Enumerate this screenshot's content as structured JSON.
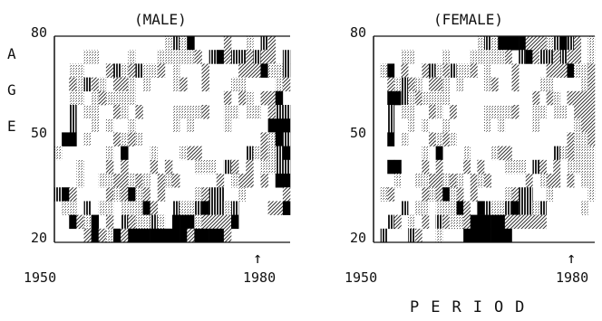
{
  "figure": {
    "y_axis_label_letters": [
      "A",
      "G",
      "E"
    ],
    "x_axis_label": "PERIOD",
    "arrow_glyph": "↑",
    "arrow_year": 1980
  },
  "chart_data": [
    {
      "type": "heatmap",
      "title": "(MALE)",
      "xlabel": "PERIOD",
      "ylabel": "AGE",
      "xlim": [
        1950,
        1983
      ],
      "ylim": [
        20,
        80
      ],
      "x_tick_labels": [
        "1950",
        "1980"
      ],
      "y_tick_labels": [
        "80",
        "50",
        "20"
      ],
      "annotations": [
        {
          "text": "↑",
          "x": 1980
        }
      ],
      "shading_levels": 5,
      "cells_resolution": {
        "period_years": 1,
        "age_years": 4
      },
      "level_colors": [
        "#ffffff",
        "#c8c8c8",
        "#8c8c8c",
        "#4a4a4a",
        "#000000"
      ],
      "rows": [
        "00000000000000013140000200103200",
        "00001100001000111112034233232203",
        "00110002312311201000200002224113",
        "00213210221010001200200011000012",
        "00110121111000000000000202102240",
        "00301100210200001111200110110233",
        "00300101001000001010000100000444",
        "04401000212100000000000000002143",
        "10000001040001000122000000312134",
        "00010002020002020001110320201133",
        "00010011221210212000002012202044",
        "34200002124120200001233001000002",
        "01103011011142003113433130000224",
        "00421402032113104441222240000000",
        "00002421424444444424444200000000"
      ]
    },
    {
      "type": "heatmap",
      "title": "(FEMALE)",
      "xlabel": "PERIOD",
      "ylabel": "AGE",
      "xlim": [
        1950,
        1983
      ],
      "ylim": [
        20,
        80
      ],
      "x_tick_labels": [
        "1950",
        "1980"
      ],
      "y_tick_labels": [
        "80",
        "50",
        "20"
      ],
      "annotations": [
        {
          "text": "↑",
          "x": 1980
        }
      ],
      "shading_levels": 5,
      "cells_resolution": {
        "period_years": 1,
        "age_years": 4
      },
      "level_colors": [
        "#ffffff",
        "#c8c8c8",
        "#8c8c8c",
        "#4a4a4a",
        "#000000"
      ],
      "rows": [
        "00000000000000013144442221343201",
        "00001100001000111112034233232201",
        "01402002312311201000200002224112",
        "00213210221010001200200011000012",
        "00443121111000000000000202102222",
        "00301100210200001111200110110222",
        "00300101001000001010000100000122",
        "00401000212100000000000000002112",
        "00000001040001000122000000312111",
        "00440002020002020001110320201111",
        "00010011221210212000002012202011",
        "01200002124120200001233001000001",
        "00003011011142043113433130000010",
        "00320102032112444442222220000000",
        "03000320010004444444000000000000"
      ]
    }
  ]
}
